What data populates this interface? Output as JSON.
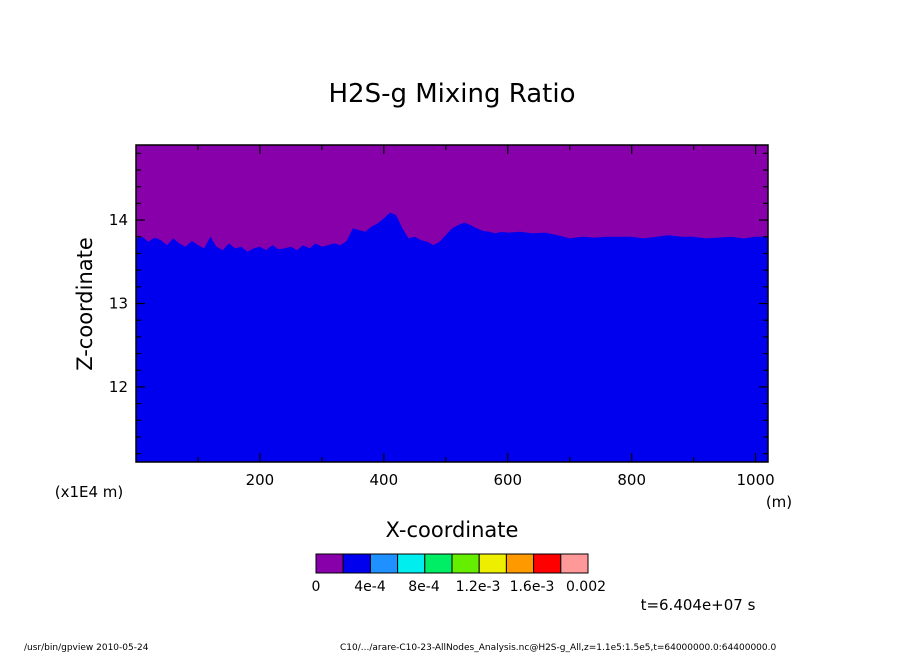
{
  "chart_data": {
    "type": "area",
    "title": "H2S-g Mixing Ratio",
    "xlabel": "X-coordinate",
    "ylabel": "Z-coordinate",
    "x_unit": "(m)",
    "y_scale_label": "(x1E4 m)",
    "xlim": [
      0,
      1020
    ],
    "ylim": [
      11.1,
      14.9
    ],
    "x_ticks": [
      200,
      400,
      600,
      800,
      1000
    ],
    "y_ticks": [
      12,
      13,
      14
    ],
    "series": [
      {
        "name": "4e-4",
        "fill_color": "#0000ee",
        "description_levels": "upper boundary of filled region (Z, x1E4 m)",
        "x": [
          0,
          10,
          20,
          30,
          40,
          50,
          60,
          70,
          80,
          90,
          100,
          110,
          120,
          130,
          140,
          150,
          160,
          170,
          180,
          190,
          200,
          210,
          220,
          230,
          240,
          250,
          260,
          270,
          280,
          290,
          300,
          310,
          320,
          330,
          340,
          350,
          360,
          370,
          380,
          390,
          400,
          410,
          420,
          430,
          440,
          450,
          460,
          470,
          480,
          490,
          500,
          510,
          520,
          530,
          540,
          550,
          560,
          570,
          580,
          590,
          600,
          620,
          640,
          660,
          680,
          700,
          720,
          740,
          760,
          780,
          800,
          820,
          840,
          860,
          880,
          900,
          920,
          940,
          960,
          980,
          1000,
          1020
        ],
        "y": [
          13.78,
          13.8,
          13.74,
          13.79,
          13.76,
          13.7,
          13.78,
          13.72,
          13.68,
          13.75,
          13.7,
          13.66,
          13.8,
          13.68,
          13.64,
          13.72,
          13.66,
          13.68,
          13.62,
          13.66,
          13.68,
          13.64,
          13.7,
          13.65,
          13.66,
          13.68,
          13.64,
          13.7,
          13.66,
          13.72,
          13.68,
          13.7,
          13.72,
          13.7,
          13.75,
          13.9,
          13.88,
          13.86,
          13.92,
          13.96,
          14.02,
          14.09,
          14.06,
          13.9,
          13.78,
          13.8,
          13.76,
          13.74,
          13.7,
          13.74,
          13.82,
          13.9,
          13.94,
          13.97,
          13.94,
          13.9,
          13.87,
          13.86,
          13.84,
          13.86,
          13.85,
          13.86,
          13.84,
          13.85,
          13.82,
          13.78,
          13.8,
          13.79,
          13.8,
          13.8,
          13.8,
          13.78,
          13.8,
          13.82,
          13.8,
          13.8,
          13.78,
          13.79,
          13.8,
          13.78,
          13.8,
          13.8
        ]
      },
      {
        "name": "0",
        "fill_color": "#8800aa",
        "description_levels": "fills remainder of domain above"
      }
    ],
    "colorbar": {
      "colors": [
        "#8800aa",
        "#0000ee",
        "#1e90ff",
        "#00eeee",
        "#00ee66",
        "#66ee00",
        "#eeee00",
        "#ff9900",
        "#ff0000",
        "#ff9999"
      ],
      "labels": [
        "0",
        "4e-4",
        "8e-4",
        "1.2e-3",
        "1.6e-3",
        "0.002"
      ]
    },
    "time_label": "t=6.404e+07 s",
    "legend_position": "bottom-center"
  },
  "footer": {
    "left": "/usr/bin/gpview  2010-05-24",
    "right": "C10/.../arare-C10-23-AllNodes_Analysis.nc@H2S-g_All,z=1.1e5:1.5e5,t=64000000.0:64400000.0"
  }
}
